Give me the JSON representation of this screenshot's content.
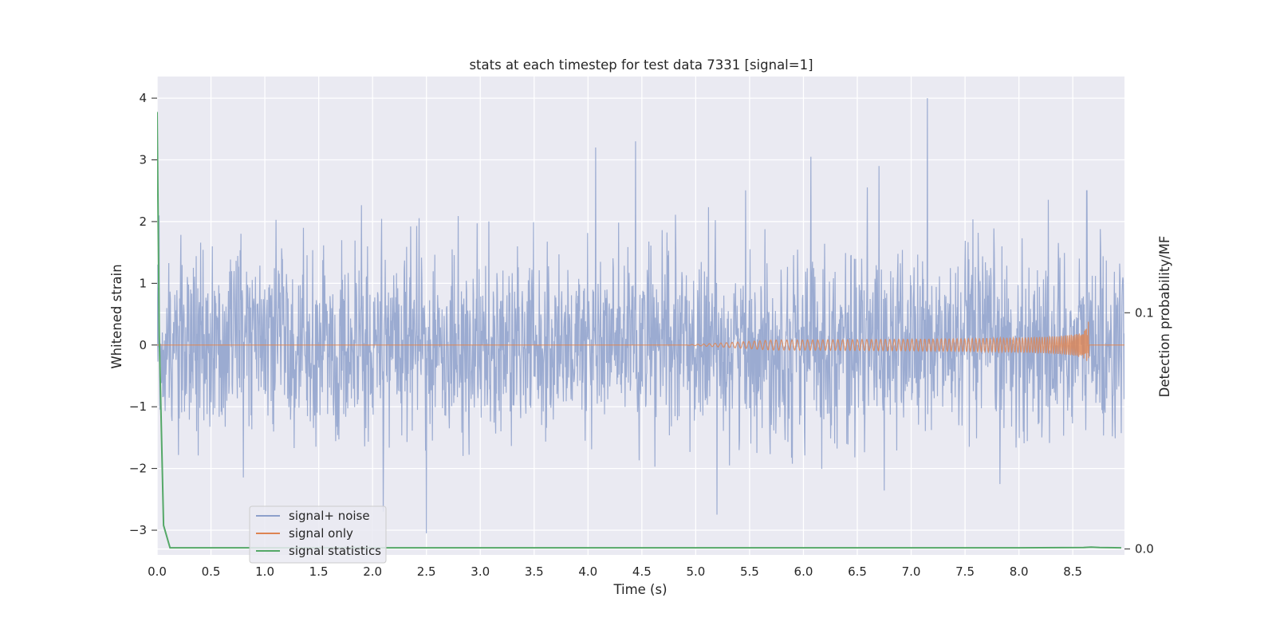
{
  "chart_data": {
    "type": "line",
    "title": "stats at each timestep for test data 7331 [signal=1]",
    "xlabel": "Time (s)",
    "ylabel": "Whitened strain",
    "y2label": "Detection probability/MF",
    "xlim": [
      0.0,
      8.98
    ],
    "ylim": [
      -3.4,
      4.35
    ],
    "y2lim": [
      -0.0025,
      0.2
    ],
    "xticks": [
      0.0,
      0.5,
      1.0,
      1.5,
      2.0,
      2.5,
      3.0,
      3.5,
      4.0,
      4.5,
      5.0,
      5.5,
      6.0,
      6.5,
      7.0,
      7.5,
      8.0,
      8.5
    ],
    "xtick_labels": [
      "0.0",
      "0.5",
      "1.0",
      "1.5",
      "2.0",
      "2.5",
      "3.0",
      "3.5",
      "4.0",
      "4.5",
      "5.0",
      "5.5",
      "6.0",
      "6.5",
      "7.0",
      "7.5",
      "8.0",
      "8.5"
    ],
    "yticks": [
      4,
      3,
      2,
      1,
      0,
      -1,
      -2,
      -3
    ],
    "ytick_labels": [
      "4",
      "3",
      "2",
      "1",
      "0",
      "−1",
      "−2",
      "−3"
    ],
    "y2ticks": [
      0.1,
      0.0
    ],
    "y2tick_labels": [
      "0.1",
      "0.0"
    ],
    "grid": true,
    "legend_position": "lower-left",
    "series": [
      {
        "name": "signal+ noise",
        "color": "#8da0cb",
        "axis": "left",
        "description_values": {
          "typical_envelope": [
            -1.5,
            1.5
          ],
          "notable_peaks": [
            [
              0.02,
              2.1
            ],
            [
              2.5,
              -3.05
            ],
            [
              2.1,
              -2.7
            ],
            [
              4.07,
              3.2
            ],
            [
              4.44,
              3.3
            ],
            [
              6.07,
              3.05
            ],
            [
              6.7,
              2.9
            ],
            [
              7.15,
              4.0
            ],
            [
              8.63,
              2.5
            ]
          ]
        }
      },
      {
        "name": "signal only",
        "color": "#dd8452",
        "axis": "left",
        "description_values": {
          "chirp_start": 4.9,
          "chirp_peak_time": 8.65,
          "peak_amplitude": 0.47
        }
      },
      {
        "name": "signal statistics",
        "color": "#55a868",
        "axis": "right",
        "x": [
          0.0,
          0.02,
          0.06,
          0.12,
          0.5,
          2.0,
          4.0,
          6.0,
          8.0,
          8.6,
          8.67,
          8.75,
          8.95
        ],
        "values": [
          0.185,
          0.09,
          0.01,
          0.0005,
          0.0005,
          0.0005,
          0.0005,
          0.0005,
          0.0005,
          0.0006,
          0.0008,
          0.0006,
          0.0005
        ]
      }
    ]
  }
}
